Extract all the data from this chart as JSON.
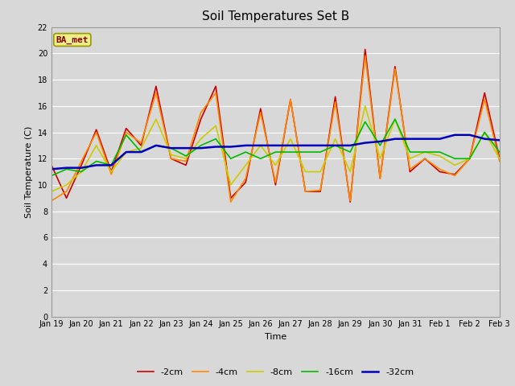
{
  "title": "Soil Temperatures Set B",
  "xlabel": "Time",
  "ylabel": "Soil Temperature (C)",
  "label_text": "BA_met",
  "ylim": [
    0,
    22
  ],
  "yticks": [
    0,
    2,
    4,
    6,
    8,
    10,
    12,
    14,
    16,
    18,
    20,
    22
  ],
  "series_labels": [
    "-2cm",
    "-4cm",
    "-8cm",
    "-16cm",
    "-32cm"
  ],
  "series_colors": [
    "#cc0000",
    "#ff8800",
    "#cccc00",
    "#00bb00",
    "#0000bb"
  ],
  "series_linewidths": [
    1.2,
    1.2,
    1.2,
    1.2,
    1.8
  ],
  "background_color": "#d8d8d8",
  "plot_bg_color": "#d8d8d8",
  "grid_color": "#ffffff",
  "xtick_positions": [
    0,
    1,
    2,
    3,
    4,
    5,
    6,
    7,
    8,
    9,
    10,
    11,
    12,
    13,
    14,
    15
  ],
  "xtick_labels": [
    "Jan 19",
    "Jan 20",
    "Jan 21",
    "Jan 22",
    "Jan 23",
    "Jan 24",
    "Jan 25",
    "Jan 26",
    "Jan 27",
    "Jan 28",
    "Jan 29",
    "Jan 30",
    "Jan 31",
    "Feb 1",
    "Feb 2",
    "Feb 3"
  ],
  "x_numeric": [
    0,
    0.5,
    1,
    1.5,
    2,
    2.5,
    3,
    3.5,
    4,
    4.5,
    5,
    5.5,
    6,
    6.5,
    7,
    7.5,
    8,
    8.5,
    9,
    9.5,
    10,
    10.5,
    11,
    11.5,
    12,
    12.5,
    13,
    13.5,
    14,
    14.5,
    15
  ],
  "data_2cm": [
    11.5,
    9.0,
    11.5,
    14.2,
    11.0,
    14.3,
    13.0,
    17.5,
    12.0,
    11.5,
    15.0,
    17.5,
    9.0,
    10.2,
    15.8,
    10.0,
    16.5,
    9.5,
    9.5,
    16.7,
    8.7,
    20.3,
    10.5,
    19.0,
    11.0,
    12.0,
    11.0,
    10.8,
    12.0,
    17.0,
    12.0
  ],
  "data_4cm": [
    8.8,
    9.5,
    11.8,
    14.0,
    10.8,
    14.0,
    13.2,
    17.0,
    12.0,
    11.8,
    15.5,
    17.0,
    8.7,
    10.5,
    15.5,
    10.2,
    16.5,
    9.5,
    9.6,
    16.3,
    8.8,
    19.8,
    10.5,
    18.8,
    11.2,
    12.0,
    11.2,
    10.7,
    12.0,
    16.5,
    11.8
  ],
  "data_8cm": [
    9.5,
    10.0,
    11.0,
    13.0,
    11.0,
    12.5,
    12.8,
    15.0,
    12.3,
    12.0,
    13.5,
    14.5,
    10.0,
    11.5,
    13.0,
    11.5,
    13.5,
    11.0,
    11.0,
    13.5,
    11.0,
    16.0,
    12.0,
    15.0,
    12.0,
    12.5,
    12.2,
    11.5,
    12.0,
    14.0,
    12.0
  ],
  "data_16cm": [
    10.7,
    11.2,
    11.0,
    11.8,
    11.5,
    13.8,
    12.5,
    13.0,
    12.8,
    12.2,
    13.0,
    13.5,
    12.0,
    12.5,
    12.0,
    12.5,
    12.5,
    12.5,
    12.5,
    13.0,
    12.5,
    14.8,
    13.0,
    15.0,
    12.5,
    12.5,
    12.5,
    12.0,
    12.0,
    14.0,
    12.5
  ],
  "data_32cm": [
    11.2,
    11.3,
    11.3,
    11.5,
    11.5,
    12.5,
    12.5,
    13.0,
    12.8,
    12.8,
    12.8,
    12.9,
    12.9,
    13.0,
    13.0,
    13.0,
    13.0,
    13.0,
    13.0,
    13.0,
    13.0,
    13.2,
    13.3,
    13.5,
    13.5,
    13.5,
    13.5,
    13.8,
    13.8,
    13.5,
    13.4
  ],
  "title_fontsize": 11,
  "axis_label_fontsize": 8,
  "tick_fontsize": 7,
  "legend_fontsize": 8
}
